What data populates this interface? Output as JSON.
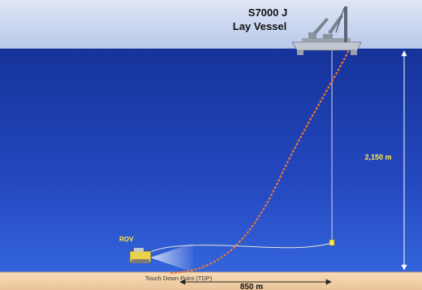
{
  "vessel": {
    "name_line1": "S7000 J",
    "name_line2": "Lay Vessel"
  },
  "depth_label": "2,150 m",
  "rov_label": "ROV",
  "tdp_label": "Touch Down Point (TDP)",
  "distance_label": "850 m",
  "colors": {
    "sky": "#c9d6ee",
    "sea_top": "#1c3fa8",
    "sea_bottom": "#2f5cd6",
    "seabed": "#f2d7b3",
    "pipeline": "#e8783a",
    "label_yellow": "#ffe84a",
    "dimension": "#ffffff"
  }
}
